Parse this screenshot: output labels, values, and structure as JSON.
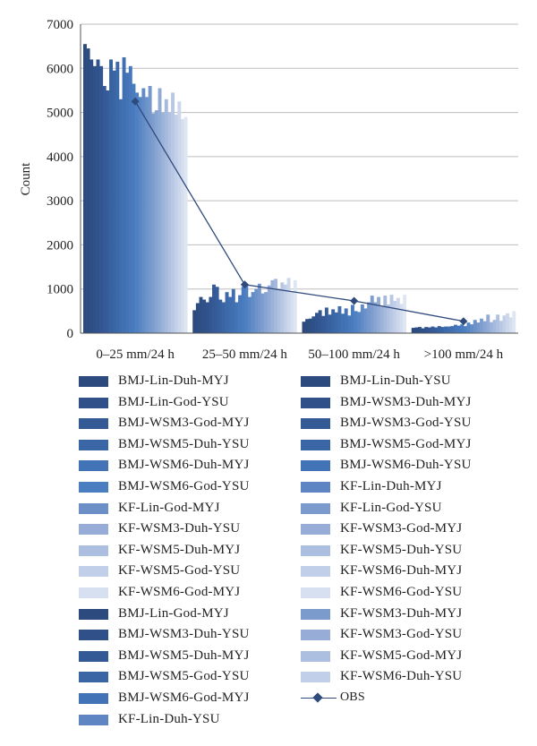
{
  "chart_data": {
    "type": "bar",
    "title": "",
    "xlabel": "",
    "ylabel": "Count",
    "ylim": [
      0,
      7000
    ],
    "yticks": [
      "0",
      "1000",
      "2000",
      "3000",
      "4000",
      "5000",
      "6000",
      "7000"
    ],
    "categories": [
      "0–25 mm/24 h",
      "25–50 mm/24 h",
      "50–100 mm/24 h",
      ">100 mm/24 h"
    ],
    "grid": true,
    "legend_position": "bottom",
    "series": [
      {
        "name": "BMJ-Lin-Duh-MYJ",
        "values": [
          6550,
          520,
          260,
          120
        ]
      },
      {
        "name": "BMJ-Lin-God-MYJ",
        "values": [
          6450,
          680,
          320,
          130
        ]
      },
      {
        "name": "BMJ-Lin-God-YSU",
        "values": [
          6200,
          820,
          330,
          140
        ]
      },
      {
        "name": "BMJ-WSM3-Duh-YSU",
        "values": [
          6050,
          760,
          380,
          110
        ]
      },
      {
        "name": "BMJ-WSM3-God-MYJ",
        "values": [
          6200,
          700,
          460,
          140
        ]
      },
      {
        "name": "BMJ-WSM5-Duh-MYJ",
        "values": [
          6050,
          820,
          520,
          130
        ]
      },
      {
        "name": "BMJ-WSM5-Duh-YSU",
        "values": [
          5600,
          1100,
          390,
          150
        ]
      },
      {
        "name": "BMJ-WSM5-God-YSU",
        "values": [
          5500,
          1050,
          580,
          130
        ]
      },
      {
        "name": "BMJ-WSM6-Duh-MYJ",
        "values": [
          6200,
          760,
          420,
          160
        ]
      },
      {
        "name": "BMJ-WSM6-God-MYJ",
        "values": [
          5950,
          700,
          540,
          140
        ]
      },
      {
        "name": "BMJ-WSM6-God-YSU",
        "values": [
          6150,
          930,
          470,
          150
        ]
      },
      {
        "name": "KF-Lin-Duh-YSU",
        "values": [
          5300,
          820,
          610,
          150
        ]
      },
      {
        "name": "KF-Lin-God-MYJ",
        "values": [
          6250,
          1000,
          440,
          160
        ]
      },
      {
        "name": "BMJ-Lin-Duh-YSU",
        "values": [
          5900,
          700,
          560,
          190
        ]
      },
      {
        "name": "BMJ-WSM3-Duh-MYJ",
        "values": [
          6050,
          860,
          400,
          170
        ]
      },
      {
        "name": "BMJ-WSM3-God-YSU",
        "values": [
          5650,
          1050,
          640,
          200
        ]
      },
      {
        "name": "BMJ-WSM5-God-MYJ",
        "values": [
          5450,
          1120,
          500,
          160
        ]
      },
      {
        "name": "BMJ-WSM6-Duh-YSU",
        "values": [
          5350,
          820,
          480,
          240
        ]
      },
      {
        "name": "KF-Lin-Duh-MYJ",
        "values": [
          5550,
          930,
          650,
          200
        ]
      },
      {
        "name": "KF-Lin-God-YSU",
        "values": [
          5350,
          1000,
          560,
          300
        ]
      },
      {
        "name": "KF-WSM3-God-MYJ",
        "values": [
          5600,
          1120,
          700,
          240
        ]
      },
      {
        "name": "KF-WSM5-Duh-YSU",
        "values": [
          4980,
          900,
          850,
          330
        ]
      },
      {
        "name": "KF-WSM6-Duh-MYJ",
        "values": [
          5050,
          930,
          700,
          270
        ]
      },
      {
        "name": "KF-WSM6-God-YSU",
        "values": [
          5550,
          1080,
          820,
          420
        ]
      },
      {
        "name": "KF-WSM3-Duh-MYJ",
        "values": [
          5000,
          1200,
          600,
          250
        ]
      },
      {
        "name": "KF-WSM3-God-YSU",
        "values": [
          5300,
          1230,
          850,
          300
        ]
      },
      {
        "name": "KF-WSM3-Duh-YSU",
        "values": [
          5000,
          1000,
          650,
          420
        ]
      },
      {
        "name": "KF-WSM5-Duh-MYJ",
        "values": [
          5450,
          1150,
          870,
          280
        ]
      },
      {
        "name": "KF-WSM5-God-MYJ",
        "values": [
          4950,
          1100,
          730,
          400
        ]
      },
      {
        "name": "KF-WSM5-God-YSU",
        "values": [
          5250,
          1250,
          800,
          450
        ]
      },
      {
        "name": "KF-WSM6-God-MYJ",
        "values": [
          4850,
          950,
          660,
          360
        ]
      },
      {
        "name": "KF-WSM6-Duh-YSU",
        "values": [
          4900,
          1200,
          870,
          500
        ]
      }
    ],
    "obs": {
      "name": "OBS",
      "values": [
        5250,
        1100,
        730,
        270
      ]
    }
  },
  "legend": {
    "left": [
      {
        "label": "BMJ-Lin-Duh-MYJ",
        "color": "#2c4a7d"
      },
      {
        "label": "BMJ-Lin-God-YSU",
        "color": "#2f5088"
      },
      {
        "label": "BMJ-WSM3-God-MYJ",
        "color": "#345a95"
      },
      {
        "label": "BMJ-WSM5-Duh-YSU",
        "color": "#3a66a6"
      },
      {
        "label": "BMJ-WSM6-Duh-MYJ",
        "color": "#4173b6"
      },
      {
        "label": "BMJ-WSM6-God-YSU",
        "color": "#4a7ec1"
      },
      {
        "label": "KF-Lin-God-MYJ",
        "color": "#6b8fc6"
      },
      {
        "label": "KF-WSM3-Duh-YSU",
        "color": "#97acd6"
      },
      {
        "label": "KF-WSM5-Duh-MYJ",
        "color": "#adbfe0"
      },
      {
        "label": "KF-WSM5-God-YSU",
        "color": "#c1cfe8"
      },
      {
        "label": "KF-WSM6-God-MYJ",
        "color": "#d6e0f1"
      },
      {
        "label": "BMJ-Lin-God-MYJ",
        "color": "#2c4a7d"
      },
      {
        "label": "BMJ-WSM3-Duh-YSU",
        "color": "#2f5088"
      },
      {
        "label": "BMJ-WSM5-Duh-MYJ",
        "color": "#345a95"
      },
      {
        "label": "BMJ-WSM5-God-YSU",
        "color": "#3a66a6"
      },
      {
        "label": "BMJ-WSM6-God-MYJ",
        "color": "#4173b6"
      },
      {
        "label": "KF-Lin-Duh-YSU",
        "color": "#5f86c3"
      }
    ],
    "right": [
      {
        "label": "BMJ-Lin-Duh-YSU",
        "color": "#2c4a7d"
      },
      {
        "label": "BMJ-WSM3-Duh-MYJ",
        "color": "#2f5088"
      },
      {
        "label": "BMJ-WSM3-God-YSU",
        "color": "#345a95"
      },
      {
        "label": "BMJ-WSM5-God-MYJ",
        "color": "#3a66a6"
      },
      {
        "label": "BMJ-WSM6-Duh-YSU",
        "color": "#4173b6"
      },
      {
        "label": "KF-Lin-Duh-MYJ",
        "color": "#5f86c3"
      },
      {
        "label": "KF-Lin-God-YSU",
        "color": "#7b9bcd"
      },
      {
        "label": "KF-WSM3-God-MYJ",
        "color": "#97acd6"
      },
      {
        "label": "KF-WSM5-Duh-YSU",
        "color": "#adbfe0"
      },
      {
        "label": "KF-WSM6-Duh-MYJ",
        "color": "#c1cfe8"
      },
      {
        "label": "KF-WSM6-God-YSU",
        "color": "#d6e0f1"
      },
      {
        "label": "KF-WSM3-Duh-MYJ",
        "color": "#7b9bcd"
      },
      {
        "label": "KF-WSM3-God-YSU",
        "color": "#97acd6"
      },
      {
        "label": "KF-WSM5-God-MYJ",
        "color": "#adbfe0"
      },
      {
        "label": "KF-WSM6-Duh-YSU",
        "color": "#c1cfe8"
      }
    ],
    "obs_label": "OBS",
    "obs_color": "#2f4a7c"
  },
  "colors": {
    "gradient": [
      "#2c4a7d",
      "#325692",
      "#3d6aab",
      "#4a7ec1",
      "#7b9bcd",
      "#adbfe0",
      "#dfe6f3"
    ],
    "grid": "#bdbdbd",
    "axis": "#555555"
  }
}
